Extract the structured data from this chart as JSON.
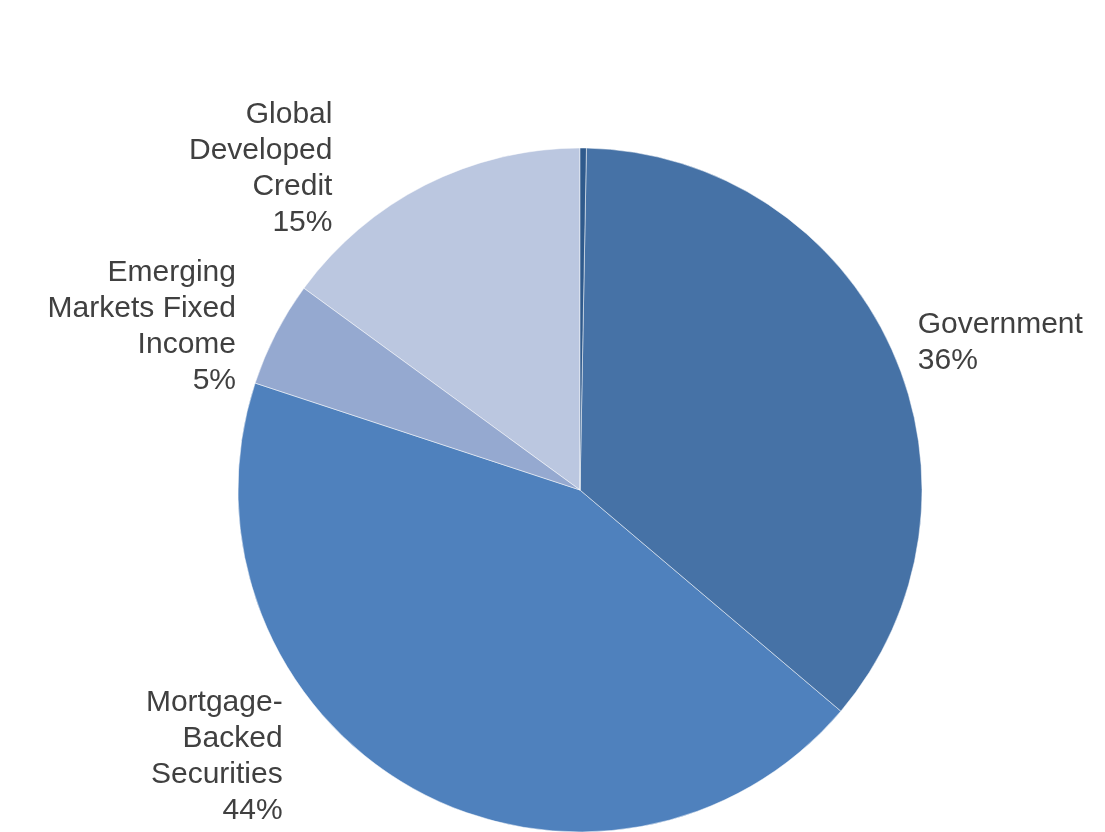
{
  "chart_data": {
    "type": "pie",
    "categories": [
      null,
      "Government",
      "Mortgage-Backed Securities",
      "Emerging Markets Fixed Income",
      "Global Developed Credit"
    ],
    "values": [
      0.3,
      36,
      44,
      5,
      15
    ],
    "colors": [
      "#2f5a8c",
      "#4672a6",
      "#4f81bd",
      "#95a9d0",
      "#bbc7e0"
    ],
    "value_labels": [
      null,
      "36%",
      "44%",
      "5%",
      "15%"
    ]
  }
}
